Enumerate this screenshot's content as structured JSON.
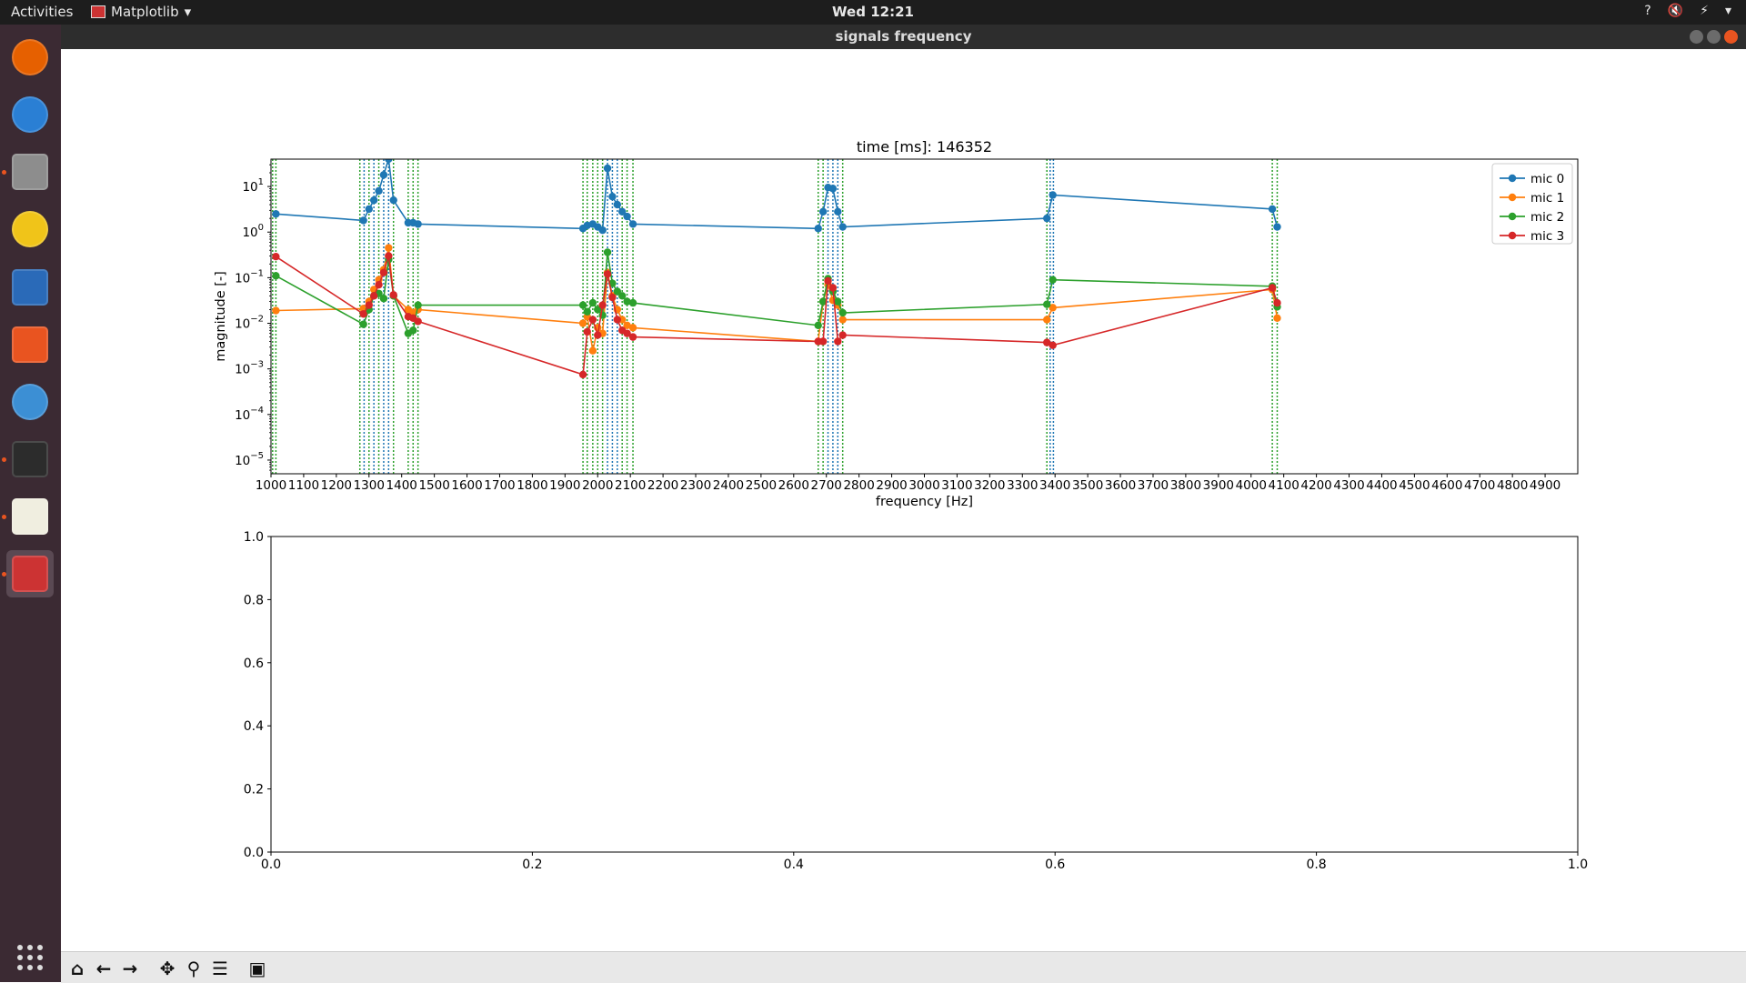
{
  "topbar": {
    "activities": "Activities",
    "app_menu": "Matplotlib",
    "clock": "Wed 12:21",
    "tray": [
      "?",
      "🔇",
      "⚡",
      "▾"
    ]
  },
  "window": {
    "title": "signals frequency"
  },
  "dock": {
    "items": [
      {
        "name": "firefox-icon",
        "color": "#e66000",
        "running": false
      },
      {
        "name": "thunderbird-icon",
        "color": "#2a7fd4",
        "running": false
      },
      {
        "name": "files-icon",
        "color": "#8d8d8d",
        "running": true
      },
      {
        "name": "rhythmbox-icon",
        "color": "#f0c419",
        "running": false
      },
      {
        "name": "libreoffice-writer-icon",
        "color": "#2a6ab8",
        "running": false
      },
      {
        "name": "software-center-icon",
        "color": "#e95420",
        "running": false
      },
      {
        "name": "help-icon",
        "color": "#3c8fd4",
        "running": false
      },
      {
        "name": "terminal-icon",
        "color": "#2c2c2c",
        "running": true
      },
      {
        "name": "text-editor-icon",
        "color": "#f0eee0",
        "running": true
      },
      {
        "name": "matplotlib-app-icon",
        "color": "#c33",
        "running": true
      }
    ],
    "show_apps": "show-applications-icon"
  },
  "toolbar": {
    "buttons": [
      "home-icon",
      "back-icon",
      "forward-icon",
      "pan-icon",
      "zoom-icon",
      "configure-icon",
      "save-icon"
    ]
  },
  "chart_data": [
    {
      "type": "line",
      "title": "time [ms]: 146352",
      "xlabel": "frequency [Hz]",
      "ylabel": "magnitude [-]",
      "yscale": "log",
      "xlim": [
        1000,
        5000
      ],
      "ylim_exp": [
        -5.3,
        1.6
      ],
      "xticks": [
        "1000",
        "1100",
        "1200",
        "1300",
        "1400",
        "1500",
        "1600",
        "1700",
        "1800",
        "1900",
        "2000",
        "2100",
        "2200",
        "2300",
        "2400",
        "2500",
        "2600",
        "2700",
        "2800",
        "2900",
        "3000",
        "3100",
        "3200",
        "3300",
        "3400",
        "3500",
        "3600",
        "3700",
        "3800",
        "3900",
        "4000",
        "4100",
        "4200",
        "4300",
        "4400",
        "4500",
        "4600",
        "4700",
        "4800",
        "4900"
      ],
      "yticks": [
        {
          "exp": 1,
          "label": "10",
          "sup": "1"
        },
        {
          "exp": 0,
          "label": "10",
          "sup": "0"
        },
        {
          "exp": -1,
          "label": "10",
          "sup": "−1"
        },
        {
          "exp": -2,
          "label": "10",
          "sup": "−2"
        },
        {
          "exp": -3,
          "label": "10",
          "sup": "−3"
        },
        {
          "exp": -4,
          "label": "10",
          "sup": "−4"
        },
        {
          "exp": -5,
          "label": "10",
          "sup": "−5"
        }
      ],
      "legend_position": "top-right",
      "vlines": [
        {
          "x": 1005,
          "color": "#2ca02c"
        },
        {
          "x": 1015,
          "color": "#2ca02c"
        },
        {
          "x": 1272,
          "color": "#2ca02c"
        },
        {
          "x": 1285,
          "color": "#1f77b4"
        },
        {
          "x": 1300,
          "color": "#2ca02c"
        },
        {
          "x": 1315,
          "color": "#1f77b4"
        },
        {
          "x": 1330,
          "color": "#2ca02c"
        },
        {
          "x": 1345,
          "color": "#1f77b4"
        },
        {
          "x": 1360,
          "color": "#1f77b4"
        },
        {
          "x": 1375,
          "color": "#2ca02c"
        },
        {
          "x": 1420,
          "color": "#2ca02c"
        },
        {
          "x": 1435,
          "color": "#2ca02c"
        },
        {
          "x": 1450,
          "color": "#2ca02c"
        },
        {
          "x": 1955,
          "color": "#2ca02c"
        },
        {
          "x": 1968,
          "color": "#2ca02c"
        },
        {
          "x": 1985,
          "color": "#2ca02c"
        },
        {
          "x": 2000,
          "color": "#2ca02c"
        },
        {
          "x": 2015,
          "color": "#2ca02c"
        },
        {
          "x": 2030,
          "color": "#1f77b4"
        },
        {
          "x": 2045,
          "color": "#1f77b4"
        },
        {
          "x": 2060,
          "color": "#1f77b4"
        },
        {
          "x": 2075,
          "color": "#2ca02c"
        },
        {
          "x": 2090,
          "color": "#2ca02c"
        },
        {
          "x": 2108,
          "color": "#2ca02c"
        },
        {
          "x": 2675,
          "color": "#2ca02c"
        },
        {
          "x": 2690,
          "color": "#2ca02c"
        },
        {
          "x": 2705,
          "color": "#1f77b4"
        },
        {
          "x": 2720,
          "color": "#1f77b4"
        },
        {
          "x": 2735,
          "color": "#1f77b4"
        },
        {
          "x": 2750,
          "color": "#2ca02c"
        },
        {
          "x": 3375,
          "color": "#2ca02c"
        },
        {
          "x": 3385,
          "color": "#1f77b4"
        },
        {
          "x": 3395,
          "color": "#1f77b4"
        },
        {
          "x": 4065,
          "color": "#2ca02c"
        },
        {
          "x": 4080,
          "color": "#2ca02c"
        }
      ],
      "series": [
        {
          "name": "mic 0",
          "color": "#1f77b4",
          "x": [
            1015,
            1283,
            1300,
            1315,
            1330,
            1345,
            1360,
            1375,
            1420,
            1435,
            1450,
            1955,
            1968,
            1985,
            2000,
            2015,
            2030,
            2045,
            2060,
            2075,
            2090,
            2108,
            2675,
            2690,
            2705,
            2720,
            2735,
            2750,
            3375,
            3393,
            4065,
            4080
          ],
          "y": [
            2.5,
            1.8,
            3.2,
            5.0,
            8.0,
            18.0,
            40.0,
            5.0,
            1.6,
            1.6,
            1.5,
            1.2,
            1.4,
            1.5,
            1.3,
            1.1,
            25.0,
            6.0,
            4.0,
            2.8,
            2.2,
            1.5,
            1.2,
            2.8,
            9.5,
            9.0,
            2.8,
            1.3,
            2.0,
            6.5,
            3.2,
            1.3
          ]
        },
        {
          "name": "mic 1",
          "color": "#ff7f0e",
          "x": [
            1015,
            1283,
            1300,
            1315,
            1330,
            1345,
            1360,
            1375,
            1420,
            1435,
            1450,
            1955,
            1968,
            1985,
            2000,
            2015,
            2030,
            2045,
            2060,
            2075,
            2090,
            2108,
            2675,
            2690,
            2705,
            2720,
            2735,
            2750,
            3375,
            3393,
            4065,
            4080
          ],
          "y": [
            0.019,
            0.021,
            0.03,
            0.055,
            0.09,
            0.15,
            0.45,
            0.04,
            0.02,
            0.017,
            0.02,
            0.01,
            0.014,
            0.0025,
            0.008,
            0.006,
            0.13,
            0.04,
            0.02,
            0.012,
            0.009,
            0.008,
            0.004,
            0.03,
            0.07,
            0.032,
            0.025,
            0.012,
            0.012,
            0.022,
            0.055,
            0.013
          ]
        },
        {
          "name": "mic 2",
          "color": "#2ca02c",
          "x": [
            1015,
            1283,
            1300,
            1315,
            1330,
            1345,
            1360,
            1375,
            1420,
            1435,
            1450,
            1955,
            1968,
            1985,
            2000,
            2015,
            2030,
            2045,
            2060,
            2075,
            2090,
            2108,
            2675,
            2690,
            2705,
            2720,
            2735,
            2750,
            3375,
            3393,
            4065,
            4080
          ],
          "y": [
            0.11,
            0.0095,
            0.02,
            0.04,
            0.045,
            0.035,
            0.25,
            0.04,
            0.006,
            0.007,
            0.025,
            0.025,
            0.018,
            0.028,
            0.02,
            0.015,
            0.36,
            0.075,
            0.05,
            0.04,
            0.03,
            0.028,
            0.009,
            0.03,
            0.095,
            0.05,
            0.03,
            0.017,
            0.026,
            0.09,
            0.065,
            0.023
          ]
        },
        {
          "name": "mic 3",
          "color": "#d62728",
          "x": [
            1015,
            1283,
            1300,
            1315,
            1330,
            1345,
            1360,
            1375,
            1420,
            1435,
            1450,
            1955,
            1968,
            1985,
            2000,
            2015,
            2030,
            2045,
            2060,
            2075,
            2090,
            2108,
            2675,
            2690,
            2705,
            2720,
            2735,
            2750,
            3375,
            3393,
            4065,
            4080
          ],
          "y": [
            0.29,
            0.016,
            0.025,
            0.04,
            0.07,
            0.13,
            0.3,
            0.042,
            0.014,
            0.013,
            0.011,
            0.00075,
            0.0065,
            0.012,
            0.0055,
            0.025,
            0.12,
            0.037,
            0.012,
            0.007,
            0.006,
            0.005,
            0.004,
            0.004,
            0.085,
            0.06,
            0.004,
            0.0055,
            0.0038,
            0.0033,
            0.06,
            0.028
          ]
        }
      ]
    },
    {
      "type": "line",
      "title": "",
      "xlim": [
        0,
        1
      ],
      "ylim": [
        0,
        1
      ],
      "xticks": [
        "0.0",
        "0.2",
        "0.4",
        "0.6",
        "0.8",
        "1.0"
      ],
      "yticks": [
        "0.0",
        "0.2",
        "0.4",
        "0.6",
        "0.8",
        "1.0"
      ],
      "series": []
    }
  ]
}
